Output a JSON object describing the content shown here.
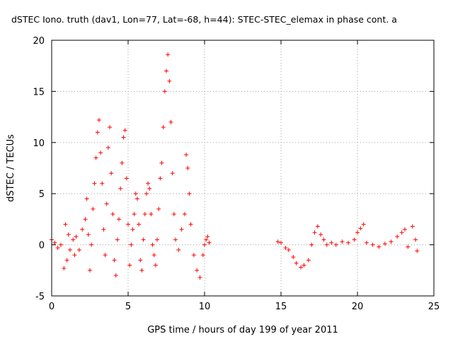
{
  "chart_data": {
    "type": "scatter",
    "title": "dSTEC Iono. truth (dav1, Lon=77, Lat=-68, h=44): STEC-STEC_elemax in phase cont. a",
    "xlabel": "GPS time / hours of day 199 of year 2011",
    "ylabel": "dSTEC  / TECUs",
    "xlim": [
      0,
      25
    ],
    "ylim": [
      -5,
      20
    ],
    "xticks": [
      "0",
      "5",
      "10",
      "15",
      "20",
      "25"
    ],
    "yticks": [
      "-5",
      "0",
      "5",
      "10",
      "15",
      "20"
    ],
    "grid": true,
    "marker": "+",
    "color": "#ff0000",
    "series": [
      {
        "x": [
          0.0,
          0.2,
          0.4,
          0.6,
          0.8,
          0.9,
          1.0,
          1.1,
          1.2,
          1.4,
          1.5,
          1.6,
          1.8,
          2.0,
          2.2,
          2.3,
          2.4,
          2.5,
          2.6,
          2.7,
          2.8,
          2.9,
          3.0,
          3.1,
          3.2,
          3.3,
          3.4,
          3.5,
          3.6,
          3.7,
          3.8,
          3.9,
          4.0,
          4.1,
          4.2,
          4.3,
          4.4,
          4.5,
          4.6,
          4.7,
          4.8,
          4.9,
          5.0,
          5.1,
          5.2,
          5.3,
          5.4,
          5.5,
          5.6,
          5.7,
          5.8,
          5.9,
          6.0,
          6.1,
          6.2,
          6.3,
          6.4,
          6.5,
          6.6,
          6.7,
          6.8,
          6.9,
          7.0,
          7.1,
          7.2,
          7.3,
          7.4,
          7.5,
          7.6,
          7.7,
          7.8,
          7.9,
          8.0,
          8.1,
          8.3,
          8.5,
          8.7,
          8.8,
          8.9,
          9.0,
          9.1,
          9.3,
          9.5,
          9.7,
          9.9,
          10.0,
          10.1,
          10.2,
          10.3
        ],
        "y": [
          0.5,
          0.2,
          -0.3,
          0.0,
          -2.3,
          2.0,
          -1.5,
          1.0,
          -0.5,
          0.5,
          -1.0,
          0.8,
          -0.5,
          1.5,
          2.5,
          4.5,
          1.0,
          -2.5,
          0.0,
          3.5,
          6.0,
          8.5,
          11.0,
          12.2,
          9.0,
          6.0,
          1.5,
          -1.0,
          4.0,
          9.5,
          11.5,
          7.0,
          3.0,
          -1.5,
          -3.0,
          0.5,
          2.5,
          5.5,
          8.0,
          10.5,
          11.2,
          6.5,
          2.0,
          -2.0,
          0.0,
          1.5,
          3.0,
          5.0,
          4.5,
          2.0,
          -1.5,
          -2.5,
          0.5,
          3.0,
          5.0,
          6.0,
          5.5,
          3.0,
          0.0,
          -1.0,
          -2.0,
          0.5,
          3.5,
          6.5,
          8.0,
          11.5,
          15.0,
          17.0,
          18.6,
          16.0,
          12.0,
          7.0,
          3.0,
          0.5,
          -0.5,
          1.5,
          3.0,
          8.8,
          7.5,
          5.0,
          2.0,
          -1.0,
          -2.5,
          -3.2,
          -1.0,
          0.0,
          0.5,
          0.8,
          0.2
        ]
      },
      {
        "x": [
          14.8,
          15.0,
          15.3,
          15.5,
          15.8,
          16.0,
          16.3,
          16.5,
          16.8,
          17.0,
          17.2,
          17.4,
          17.6,
          17.8,
          18.0,
          18.3,
          18.6,
          19.0,
          19.4,
          19.8,
          20.0,
          20.2,
          20.4,
          20.6,
          21.0,
          21.4,
          21.8,
          22.2,
          22.6,
          22.9,
          23.1,
          23.3,
          23.6,
          23.8,
          23.9
        ],
        "y": [
          0.3,
          0.2,
          -0.3,
          -0.5,
          -1.2,
          -1.8,
          -2.2,
          -2.0,
          -1.5,
          0.0,
          1.2,
          1.8,
          1.0,
          0.5,
          0.0,
          0.2,
          0.0,
          0.3,
          0.2,
          0.5,
          1.2,
          1.6,
          2.0,
          0.2,
          0.0,
          -0.2,
          0.1,
          0.3,
          0.8,
          1.2,
          1.5,
          -0.2,
          1.8,
          0.5,
          -0.6
        ]
      }
    ]
  }
}
